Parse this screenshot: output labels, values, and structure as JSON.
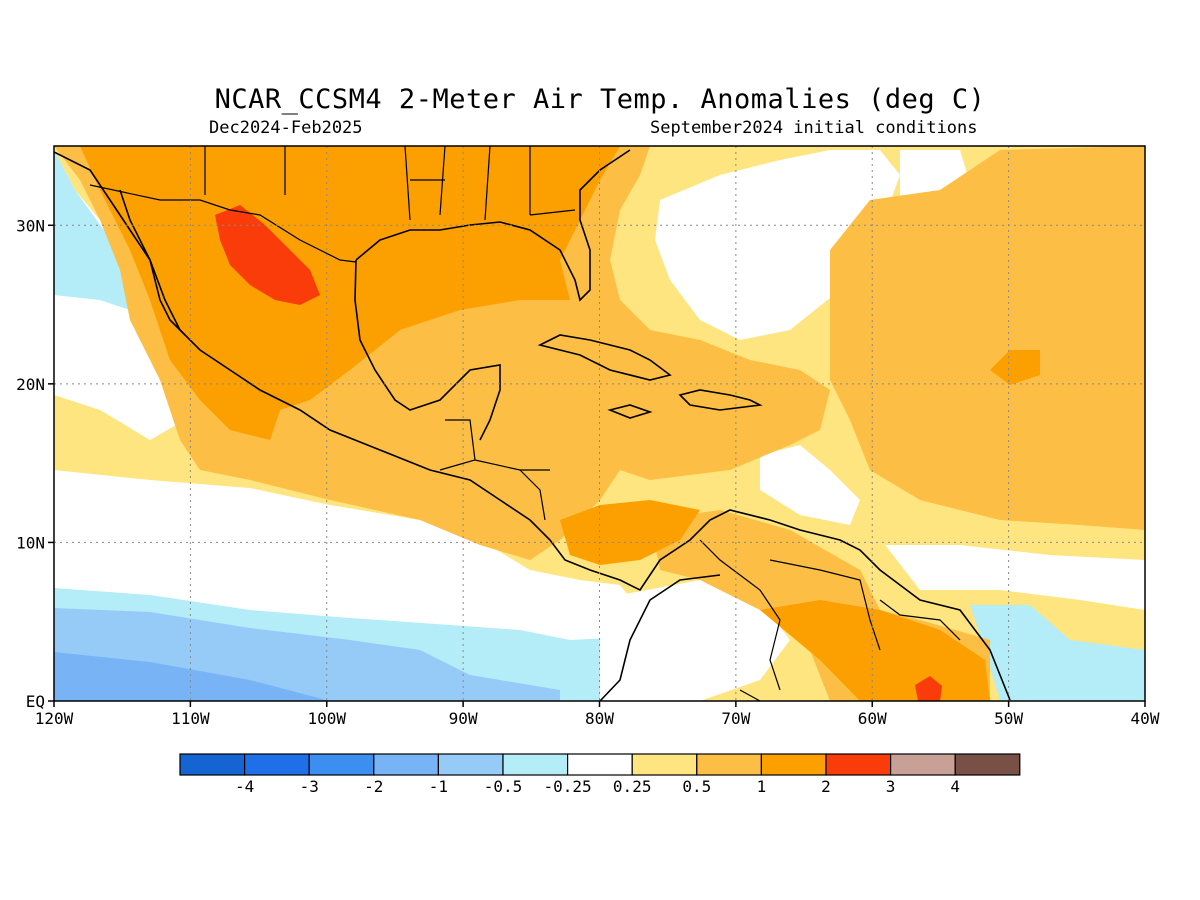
{
  "title": "NCAR_CCSM4 2-Meter Air Temp. Anomalies (deg C)",
  "valid_period": "Dec2024-Feb2025",
  "initial_conditions": "September2024 initial conditions",
  "map": {
    "lon_labels": [
      "120W",
      "110W",
      "100W",
      "90W",
      "80W",
      "70W",
      "60W",
      "50W",
      "40W"
    ],
    "lat_labels": [
      "30N",
      "20N",
      "10N",
      "EQ"
    ],
    "gridlines": "dotted"
  },
  "colorbar": {
    "colors": [
      "#1664d4",
      "#1f6fe8",
      "#3c8ef0",
      "#78b3f5",
      "#96cbf8",
      "#b4ecf8",
      "#ffffff",
      "#fee580",
      "#fcbe44",
      "#fba000",
      "#fa3c0a",
      "#c8a096",
      "#785046"
    ],
    "labels": [
      "-4",
      "-3",
      "-2",
      "-1",
      "-0.5",
      "-0.25",
      "0.25",
      "0.5",
      "1",
      "2",
      "3",
      "4"
    ]
  }
}
